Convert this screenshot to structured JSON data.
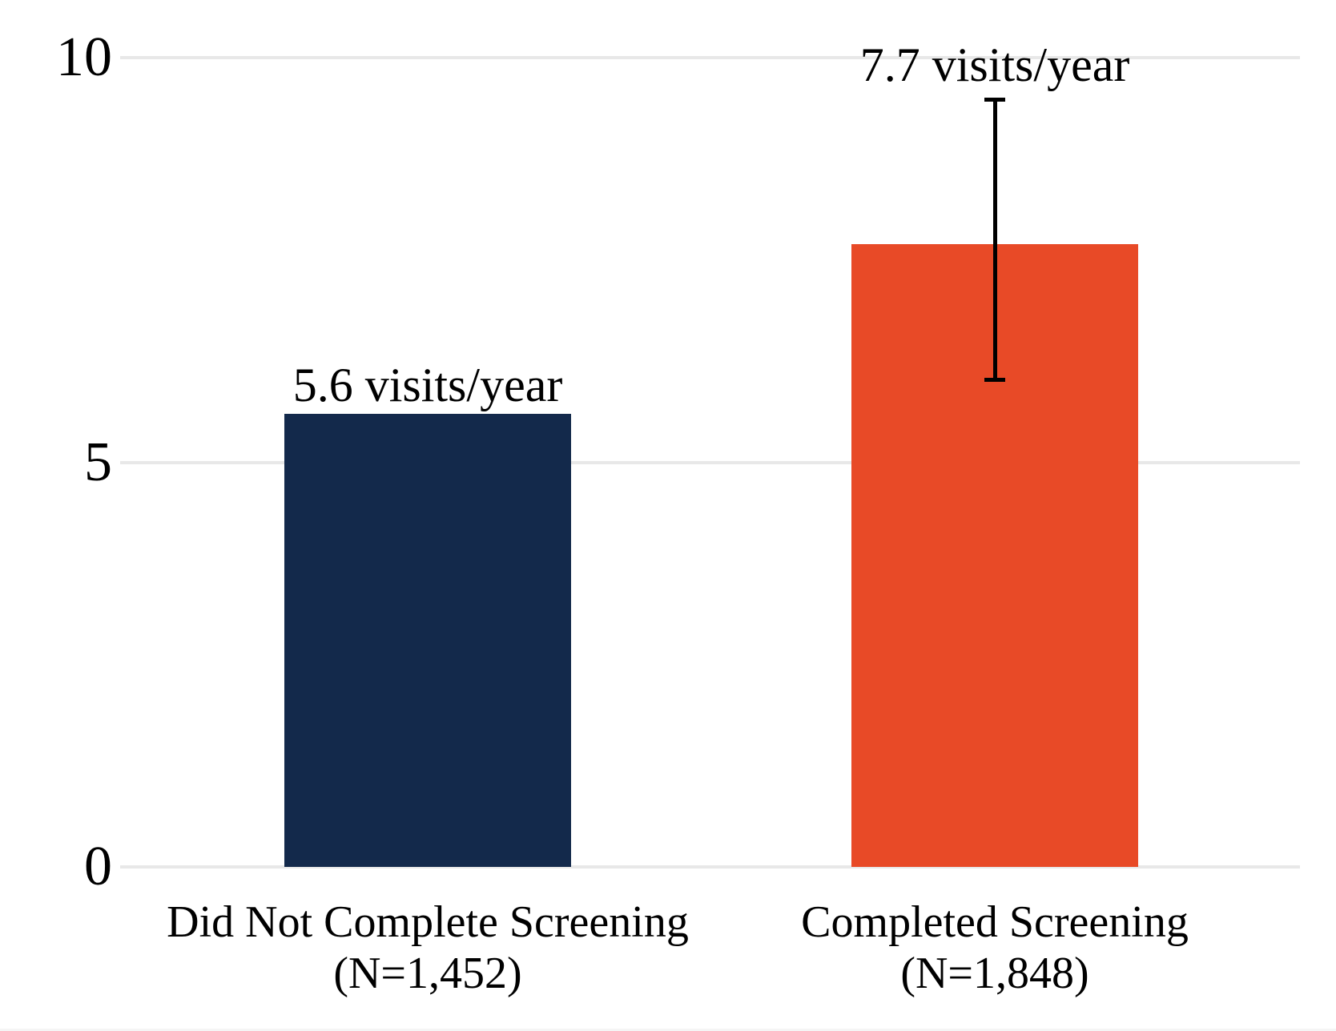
{
  "chart_data": {
    "type": "bar",
    "title": "",
    "xlabel": "",
    "ylabel": "",
    "categories": [
      {
        "line1": "Did Not Complete Screening",
        "line2": "(N=1,452)"
      },
      {
        "line1": "Completed Screening",
        "line2": "(N=1,848)"
      }
    ],
    "series": [
      {
        "name": "visits-per-year",
        "values": [
          5.6,
          7.7
        ],
        "bar_labels": [
          "5.6 visits/year",
          "7.7 visits/year"
        ],
        "bar_colors": [
          "#13294B",
          "#E84A27"
        ]
      }
    ],
    "error_bars": [
      {
        "bar_index": 1,
        "low": 6.0,
        "high": 9.5
      }
    ],
    "yticks": [
      0,
      5,
      10
    ],
    "ytick_labels": [
      "0",
      "5",
      "10"
    ],
    "ylim": [
      0,
      10.7
    ],
    "grid": true,
    "legend_position": "none",
    "colors": {
      "grid": "#E8E8E8",
      "error_bar": "#000000",
      "text": "#000000",
      "background": "#FFFFFF"
    }
  }
}
